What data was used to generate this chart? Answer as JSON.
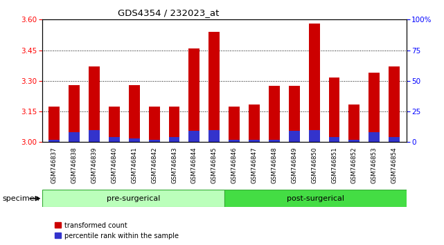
{
  "title": "GDS4354 / 232023_at",
  "samples": [
    "GSM746837",
    "GSM746838",
    "GSM746839",
    "GSM746840",
    "GSM746841",
    "GSM746842",
    "GSM746843",
    "GSM746844",
    "GSM746845",
    "GSM746846",
    "GSM746847",
    "GSM746848",
    "GSM746849",
    "GSM746850",
    "GSM746851",
    "GSM746852",
    "GSM746853",
    "GSM746854"
  ],
  "red_values": [
    3.175,
    3.28,
    3.37,
    3.175,
    3.28,
    3.175,
    3.175,
    3.46,
    3.54,
    3.175,
    3.185,
    3.275,
    3.275,
    3.58,
    3.315,
    3.185,
    3.34,
    3.37
  ],
  "blue_percentiles": [
    2,
    8,
    10,
    4,
    3,
    2,
    4,
    9,
    10,
    2,
    2,
    2,
    9,
    10,
    4,
    2,
    8,
    4
  ],
  "ymin": 3.0,
  "ymax": 3.6,
  "yticks_left": [
    3.0,
    3.15,
    3.3,
    3.45,
    3.6
  ],
  "yticks_right": [
    0,
    25,
    50,
    75,
    100
  ],
  "bar_color": "#cc0000",
  "blue_color": "#3333cc",
  "pre_surgical_count": 9,
  "post_surgical_count": 9,
  "pre_label": "pre-surgerical",
  "post_label": "post-surgerical",
  "pre_color": "#bbffbb",
  "post_color": "#44dd44",
  "specimen_label": "specimen",
  "legend_red": "transformed count",
  "legend_blue": "percentile rank within the sample",
  "background_color": "#ffffff",
  "xtick_bg_color": "#cccccc",
  "group_border_color": "#33aa33"
}
